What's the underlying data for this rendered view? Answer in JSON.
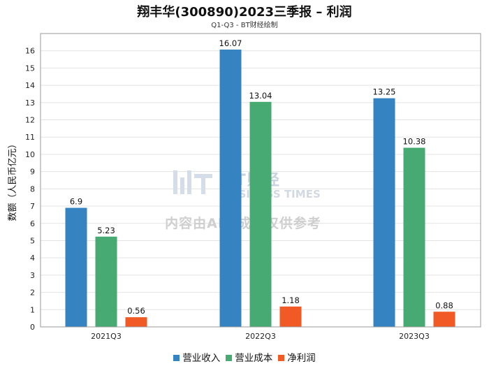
{
  "header": {
    "title": "翔丰华(300890)2023三季报 – 利润",
    "subtitle": "Q1-Q3 - BT财经绘制"
  },
  "watermark": {
    "brand": "BT财经",
    "brand_en": "BUSINESS TIMES",
    "notice": "内容由AI生成，仅供参考"
  },
  "chart_data": {
    "type": "bar",
    "title": "翔丰华(300890)2023三季报 – 利润",
    "subtitle": "Q1-Q3 - BT财经绘制",
    "xlabel": "",
    "ylabel": "数额（人民币亿元）",
    "ylim": [
      0,
      17
    ],
    "yticks": [
      0,
      1,
      2,
      3,
      4,
      5,
      6,
      7,
      8,
      9,
      10,
      11,
      12,
      13,
      14,
      15,
      16
    ],
    "categories": [
      "2021Q3",
      "2022Q3",
      "2023Q3"
    ],
    "series": [
      {
        "name": "营业收入",
        "color": "#3583c1",
        "values": [
          6.9,
          16.07,
          13.25
        ],
        "labels": [
          "6.9",
          "16.07",
          "13.25"
        ]
      },
      {
        "name": "营业成本",
        "color": "#48aa73",
        "values": [
          5.23,
          13.04,
          10.38
        ],
        "labels": [
          "5.23",
          "13.04",
          "10.38"
        ]
      },
      {
        "name": "净利润",
        "color": "#f15a24",
        "values": [
          0.56,
          1.18,
          0.88
        ],
        "labels": [
          "0.56",
          "1.18",
          "0.88"
        ]
      }
    ],
    "legend_position": "bottom",
    "grid": true
  }
}
